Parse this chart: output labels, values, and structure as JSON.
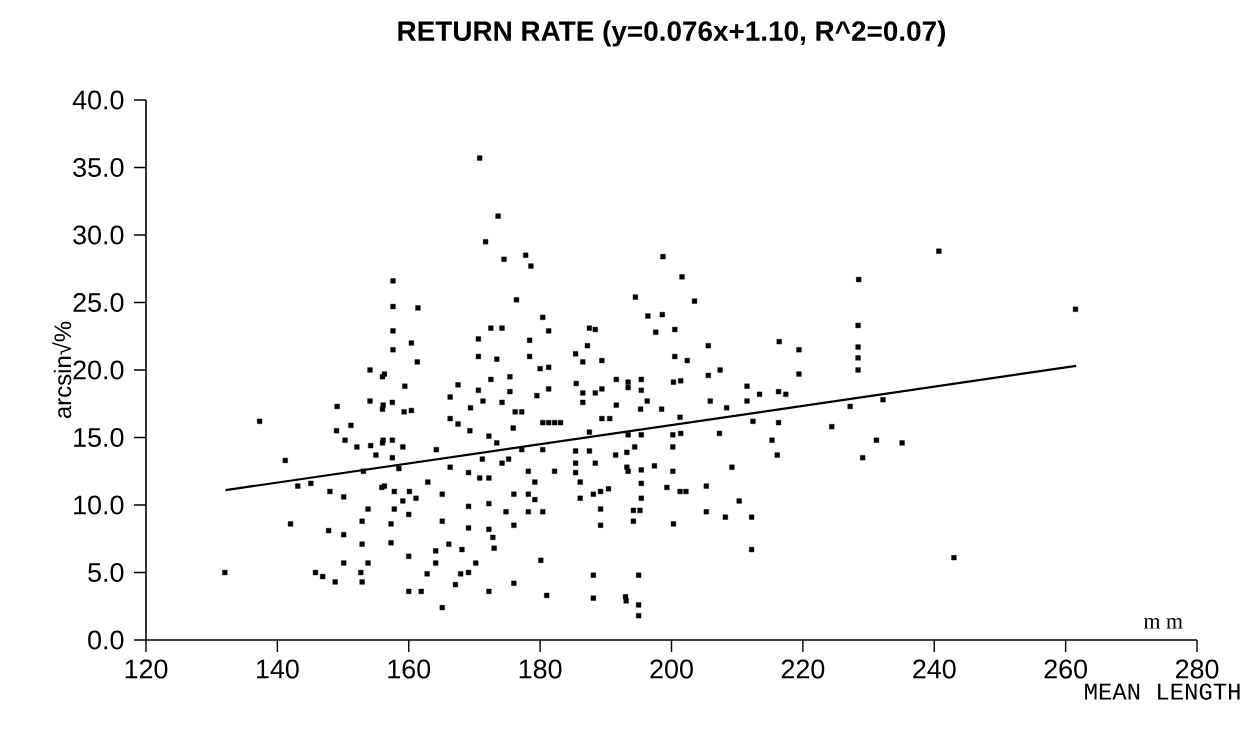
{
  "chart_data": {
    "type": "scatter",
    "title": "RETURN RATE (y=0.076x+1.10, R^2=0.07)",
    "xlabel": "MEAN LENGTH",
    "ylabel": "arcsin√%",
    "annotations": [
      "m m"
    ],
    "marker": "square",
    "xlim": [
      120,
      280
    ],
    "ylim": [
      0,
      40
    ],
    "xticks": [
      120,
      140,
      160,
      180,
      200,
      220,
      240,
      260,
      280
    ],
    "yticks": [
      {
        "value": 0,
        "label": "0.0"
      },
      {
        "value": 5,
        "label": "5.0"
      },
      {
        "value": 10,
        "label": "10.0"
      },
      {
        "value": 15,
        "label": "15.0"
      },
      {
        "value": 20,
        "label": "20.0"
      },
      {
        "value": 25,
        "label": "25.0"
      },
      {
        "value": 30,
        "label": "30.0"
      },
      {
        "value": 35,
        "label": "35.0"
      },
      {
        "value": 40,
        "label": "40.0"
      }
    ],
    "series": [
      {
        "color": "#000000",
        "x": [
          132.0,
          137.3,
          141.2,
          142.0,
          143.1,
          145.1,
          145.8,
          146.9,
          148.0,
          147.8,
          148.8,
          149.1,
          149.0,
          150.1,
          150.1,
          150.1,
          150.3,
          151.2,
          152.1,
          152.9,
          152.9,
          152.7,
          152.9,
          153.1,
          153.8,
          153.8,
          154.1,
          154.1,
          154.2,
          155.0,
          156.0,
          156.0,
          155.9,
          156.0,
          170.8,
          173.6,
          171.7,
          174.5,
          177.8,
          178.6,
          176.4,
          157.6,
          157.6,
          161.4,
          157.6,
          157.6,
          160.4,
          161.3,
          156.3,
          159.4,
          156.1,
          157.5,
          159.3,
          160.4,
          156.1,
          157.5,
          159.1,
          157.5,
          158.5,
          156.3,
          157.8,
          160.1,
          161.1,
          157.8,
          159.1,
          160.0,
          157.3,
          157.3,
          160.0,
          160.0,
          161.9,
          162.8,
          164.1,
          164.1,
          165.1,
          166.1,
          167.1,
          168.1,
          167.9,
          169.1,
          170.2,
          172.2,
          176.0,
          180.1,
          181.0,
          188.1,
          188.1,
          193.1,
          162.9,
          164.2,
          165.1,
          165.1,
          166.3,
          166.3,
          167.5,
          166.3,
          167.5,
          169.3,
          169.1,
          169.1,
          169.1,
          169.4,
          170.6,
          170.6,
          170.6,
          171.3,
          171.2,
          170.8,
          172.2,
          172.2,
          172.2,
          172.8,
          173.0,
          172.5,
          174.2,
          173.4,
          172.5,
          174.2,
          175.4,
          175.4,
          176.2,
          177.2,
          175.9,
          173.4,
          172.2,
          175.2,
          177.2,
          174.2,
          174.8,
          176.0,
          176.0,
          178.2,
          178.2,
          179.2,
          178.2,
          179.2,
          180.4,
          178.4,
          178.4,
          179.5,
          180.4,
          181.3,
          181.3,
          181.3,
          180.0,
          180.4,
          181.3,
          182.2,
          183.1,
          180.4,
          182.2,
          185.4,
          186.5,
          187.2,
          188.4,
          187.5,
          189.4,
          185.5,
          186.5,
          186.5,
          188.4,
          189.4,
          189.4,
          190.6,
          191.6,
          191.6,
          193.4,
          185.4,
          185.4,
          185.4,
          187.5,
          188.4,
          191.5,
          193.4,
          186.1,
          186.1,
          188.1,
          189.2,
          190.4,
          189.2,
          189.2,
          187.5,
          198.7,
          201.6,
          203.5,
          194.5,
          196.4,
          198.6,
          197.6,
          200.5,
          200.5,
          202.4,
          205.6,
          205.6,
          207.4,
          193.4,
          195.4,
          195.4,
          196.3,
          195.3,
          198.5,
          200.3,
          201.4,
          205.9,
          201.3,
          208.4,
          211.5,
          211.5,
          213.4,
          216.4,
          219.4,
          219.4,
          216.3,
          217.4,
          212.4,
          216.3,
          207.3,
          193.4,
          195.4,
          200.2,
          201.4,
          194.4,
          193.2,
          200.2,
          215.3,
          216.1,
          193.2,
          195.4,
          197.4,
          200.2,
          195.4,
          199.3,
          201.3,
          202.2,
          195.4,
          194.2,
          195.2,
          194.2,
          200.3,
          205.3,
          205.3,
          208.2,
          209.2,
          210.3,
          212.2,
          212.2,
          195.0,
          193.0,
          195.0,
          195.0,
          228.5,
          228.4,
          228.4,
          228.4,
          228.4,
          227.2,
          232.2,
          224.4,
          229.1,
          231.2,
          235.1,
          240.7,
          261.5,
          243.0
        ],
        "values": [
          5.0,
          16.2,
          13.3,
          8.6,
          11.4,
          11.6,
          5.0,
          4.7,
          11.0,
          8.1,
          4.3,
          17.3,
          15.5,
          10.6,
          7.8,
          5.7,
          14.8,
          15.9,
          14.3,
          8.8,
          7.1,
          5.0,
          4.3,
          12.5,
          9.7,
          5.7,
          20.0,
          17.7,
          14.4,
          13.7,
          19.5,
          17.1,
          11.3,
          14.6,
          35.7,
          31.4,
          29.5,
          28.2,
          28.5,
          27.7,
          25.2,
          26.6,
          24.7,
          24.6,
          22.9,
          21.5,
          22.0,
          20.6,
          19.7,
          18.8,
          17.4,
          17.6,
          16.9,
          17.0,
          14.8,
          14.8,
          14.3,
          13.5,
          12.7,
          11.4,
          11.0,
          11.0,
          10.5,
          9.7,
          10.3,
          9.3,
          8.6,
          7.2,
          6.2,
          3.6,
          3.6,
          4.9,
          5.7,
          6.6,
          2.4,
          7.1,
          4.1,
          6.7,
          4.9,
          5.0,
          5.7,
          3.6,
          4.2,
          5.9,
          3.3,
          4.8,
          3.1,
          2.9,
          11.7,
          14.1,
          10.8,
          8.8,
          12.8,
          18.0,
          18.9,
          16.4,
          16.0,
          15.5,
          12.4,
          9.9,
          8.3,
          17.2,
          22.3,
          21.0,
          18.5,
          17.7,
          13.4,
          12.0,
          12.0,
          10.1,
          8.2,
          7.6,
          6.8,
          23.1,
          23.1,
          20.8,
          19.3,
          17.6,
          19.5,
          18.4,
          16.9,
          16.9,
          15.7,
          14.6,
          15.1,
          13.4,
          14.1,
          13.1,
          9.5,
          10.8,
          8.5,
          12.5,
          10.8,
          11.7,
          9.5,
          10.4,
          9.5,
          21.0,
          22.2,
          18.1,
          23.9,
          22.9,
          20.2,
          18.6,
          20.1,
          16.1,
          16.1,
          16.1,
          16.1,
          14.1,
          12.5,
          21.2,
          20.6,
          21.8,
          23.0,
          23.1,
          20.7,
          19.0,
          18.3,
          17.6,
          18.3,
          18.6,
          16.4,
          16.4,
          19.3,
          17.4,
          18.7,
          14.0,
          13.1,
          12.4,
          14.0,
          13.1,
          13.7,
          12.5,
          11.7,
          10.5,
          10.8,
          11.0,
          11.2,
          9.7,
          8.5,
          15.4,
          28.4,
          26.9,
          25.1,
          25.4,
          24.0,
          24.1,
          22.8,
          23.0,
          21.0,
          20.7,
          21.8,
          19.6,
          20.0,
          19.1,
          19.3,
          18.5,
          17.7,
          17.1,
          17.1,
          19.1,
          19.2,
          17.7,
          16.5,
          17.2,
          18.8,
          17.7,
          18.2,
          22.1,
          21.5,
          19.7,
          18.4,
          18.2,
          16.2,
          16.1,
          15.3,
          15.2,
          15.2,
          15.2,
          15.3,
          14.3,
          13.9,
          14.3,
          14.8,
          13.7,
          12.8,
          12.6,
          12.9,
          12.5,
          11.6,
          11.3,
          11.0,
          11.0,
          10.5,
          9.6,
          9.6,
          8.8,
          8.6,
          11.4,
          9.5,
          9.1,
          12.8,
          10.3,
          9.1,
          6.7,
          4.8,
          3.2,
          2.6,
          1.8,
          26.7,
          23.3,
          21.7,
          20.9,
          20.0,
          17.3,
          17.8,
          15.8,
          13.5,
          14.8,
          14.6,
          28.8,
          24.5,
          6.1
        ]
      },
      {
        "type": "line",
        "marker": "none",
        "color": "#000000",
        "x": [
          132.1,
          261.6
        ],
        "values": [
          11.1,
          20.3
        ]
      }
    ]
  }
}
